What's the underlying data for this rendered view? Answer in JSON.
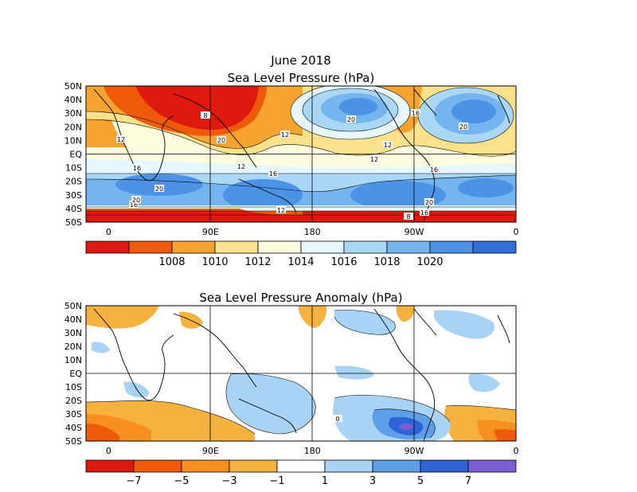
{
  "top_map": {
    "title_line1": "June 2018",
    "title_line2": "Sea Level Pressure (hPa)",
    "lat_labels": [
      "50N",
      "40N",
      "30N",
      "20N",
      "10N",
      "EQ",
      "10S",
      "20S",
      "30S",
      "40S",
      "50S"
    ],
    "lon_labels": [
      "0",
      "90E",
      "180",
      "90W",
      "0"
    ],
    "contour_labels": [
      "20",
      "16",
      "12",
      "8",
      "20",
      "16",
      "12",
      "16",
      "20",
      "16",
      "12",
      "20",
      "20",
      "16",
      "12",
      "8",
      "20",
      "16",
      "12",
      "12"
    ],
    "colorbar": {
      "labels": [
        "1008",
        "1010",
        "1012",
        "1014",
        "1016",
        "1018",
        "1020"
      ],
      "colors": [
        "#dd1a0d",
        "#ef5a0a",
        "#f6a330",
        "#fde18b",
        "#fffde0",
        "#e6f7fd",
        "#aad7f5",
        "#74b4ef",
        "#4c93e6",
        "#2f6fd8"
      ]
    }
  },
  "bottom_map": {
    "title": "Sea Level Pressure Anomaly (hPa)",
    "lat_labels": [
      "50N",
      "40N",
      "30N",
      "20N",
      "10N",
      "EQ",
      "10S",
      "20S",
      "30S",
      "40S",
      "50S"
    ],
    "lon_labels": [
      "0",
      "90E",
      "180",
      "90W",
      "0"
    ],
    "contour_labels": [
      "0"
    ],
    "colorbar": {
      "labels": [
        "−7",
        "−5",
        "−3",
        "−1",
        "1",
        "3",
        "5",
        "7"
      ],
      "colors": [
        "#dd1a0d",
        "#ef5a0a",
        "#f7901e",
        "#f6b23e",
        "#ffffff",
        "#a9d3f4",
        "#5c9ee8",
        "#2f63d6",
        "#7a5fd4"
      ]
    }
  }
}
